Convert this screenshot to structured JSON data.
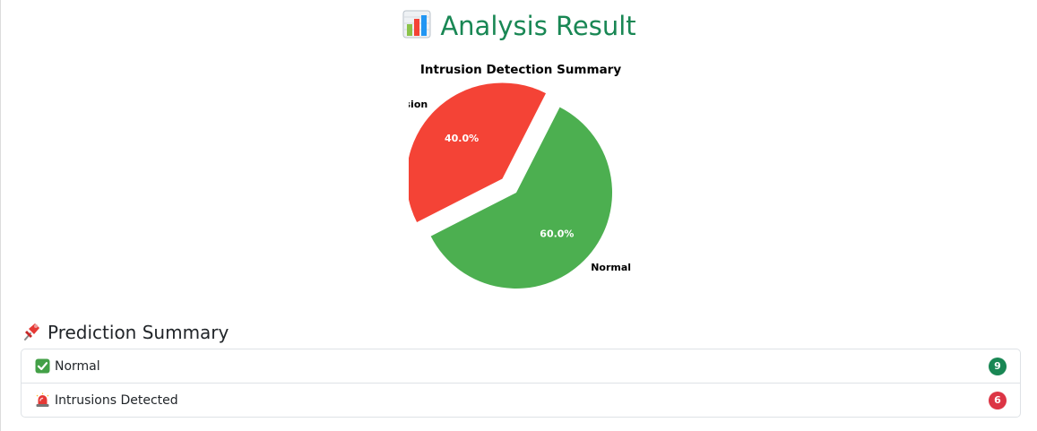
{
  "header": {
    "title": "Analysis Result",
    "icon": "bar-chart-icon"
  },
  "chart_data": {
    "type": "pie",
    "title": "Intrusion Detection Summary",
    "categories": [
      "Intrusion",
      "Normal"
    ],
    "values": [
      40.0,
      60.0
    ],
    "labels": [
      "40.0%",
      "60.0%"
    ],
    "colors": [
      "#f44336",
      "#4caf50"
    ],
    "explode": [
      "Intrusion"
    ]
  },
  "summary": {
    "heading": "Prediction Summary",
    "heading_icon": "pushpin-icon",
    "items": [
      {
        "icon": "check-mark-icon",
        "label": "Normal",
        "count": "9",
        "badge_color": "#198754"
      },
      {
        "icon": "siren-icon",
        "label": "Intrusions Detected",
        "count": "6",
        "badge_color": "#dc3545"
      }
    ]
  }
}
